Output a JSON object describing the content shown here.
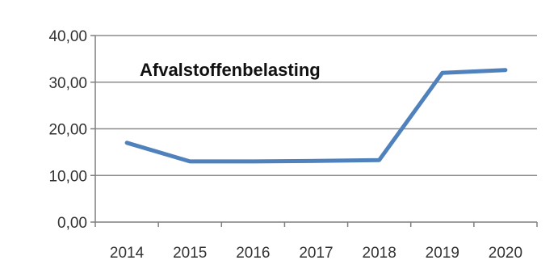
{
  "chart_data": {
    "type": "line",
    "title": "Afvalstoffenbelasting",
    "xlabel": "",
    "ylabel": "",
    "categories": [
      "2014",
      "2015",
      "2016",
      "2017",
      "2018",
      "2019",
      "2020"
    ],
    "series": [
      {
        "values": [
          17.0,
          13.0,
          13.0,
          13.1,
          13.3,
          32.0,
          32.6
        ],
        "color": "#4f81bd"
      }
    ],
    "ylim": [
      0,
      40
    ],
    "yticks": [
      "0,00",
      "10,00",
      "20,00",
      "30,00",
      "40,00"
    ],
    "grid": true,
    "legend": "none"
  }
}
